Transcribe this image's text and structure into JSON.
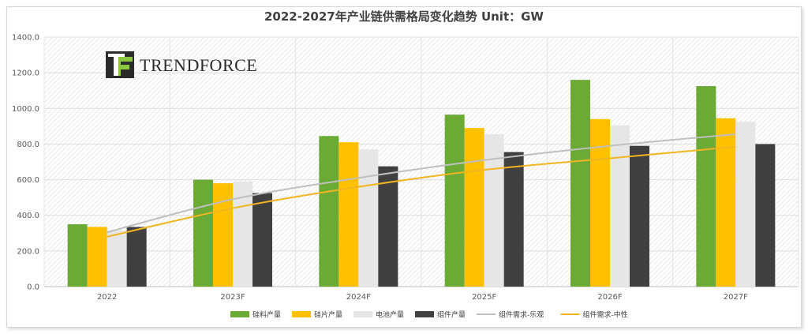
{
  "chart_data": {
    "type": "bar",
    "title": "2022-2027年产业链供需格局变化趋势 Unit：GW",
    "categories": [
      "2022",
      "2023F",
      "2024F",
      "2025F",
      "2026F",
      "2027F"
    ],
    "ylim": [
      0,
      1400
    ],
    "yticks": [
      "0.0",
      "200.0",
      "400.0",
      "600.0",
      "800.0",
      "1000.0",
      "1200.0",
      "1400.0"
    ],
    "ytick_values": [
      0,
      200,
      400,
      600,
      800,
      1000,
      1200,
      1400
    ],
    "series": [
      {
        "name": "硅料产量",
        "kind": "bar",
        "color": "#6aaa35",
        "values": [
          350,
          600,
          845,
          965,
          1160,
          1125
        ]
      },
      {
        "name": "硅片产量",
        "kind": "bar",
        "color": "#ffc000",
        "values": [
          335,
          580,
          810,
          890,
          940,
          945
        ]
      },
      {
        "name": "电池产量",
        "kind": "bar",
        "color": "#e6e6e6",
        "values": [
          315,
          590,
          770,
          855,
          905,
          925
        ]
      },
      {
        "name": "组件产量",
        "kind": "bar",
        "color": "#404040",
        "values": [
          335,
          525,
          675,
          755,
          790,
          800
        ]
      },
      {
        "name": "组件需求-乐观",
        "kind": "line",
        "color": "#bfbfbf",
        "values": [
          305,
          490,
          610,
          710,
          790,
          855
        ]
      },
      {
        "name": "组件需求-中性",
        "kind": "line",
        "color": "#f0b521",
        "values": [
          280,
          440,
          560,
          655,
          720,
          785
        ]
      }
    ]
  },
  "logo": {
    "text": "TRENDFORCE",
    "mark": "TF"
  }
}
